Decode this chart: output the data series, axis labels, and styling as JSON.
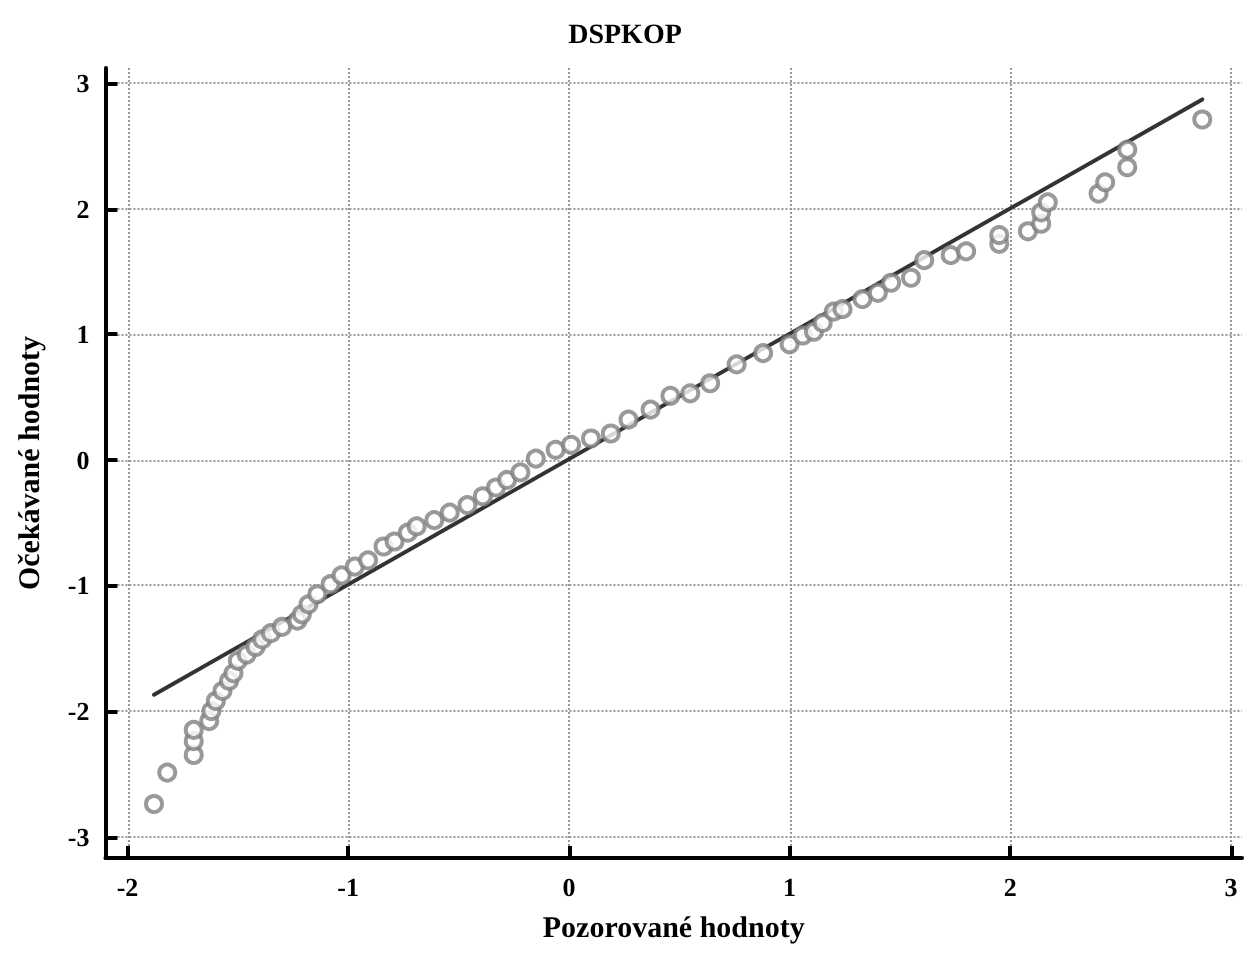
{
  "chart_data": {
    "type": "scatter",
    "title": "DSPKOP",
    "xlabel": "Pozorované hodnoty",
    "ylabel": "Očekávané hodnoty",
    "xlim": [
      -2.1,
      3.05
    ],
    "ylim": [
      -3.17,
      3.12
    ],
    "xticks": [
      -2,
      -1,
      0,
      1,
      2,
      3
    ],
    "yticks": [
      -3,
      -2,
      -1,
      0,
      1,
      2,
      3
    ],
    "grid": true,
    "marker": "circle",
    "series": [
      {
        "color": "#808080",
        "x": [
          -1.88,
          -1.82,
          -1.7,
          -1.7,
          -1.7,
          -1.63,
          -1.62,
          -1.6,
          -1.57,
          -1.54,
          -1.52,
          -1.5,
          -1.46,
          -1.42,
          -1.39,
          -1.35,
          -1.3,
          -1.23,
          -1.21,
          -1.18,
          -1.14,
          -1.08,
          -1.03,
          -0.97,
          -0.91,
          -0.84,
          -0.79,
          -0.73,
          -0.69,
          -0.61,
          -0.54,
          -0.46,
          -0.39,
          -0.33,
          -0.28,
          -0.22,
          -0.15,
          -0.06,
          0.01,
          0.1,
          0.19,
          0.27,
          0.37,
          0.46,
          0.55,
          0.64,
          0.76,
          0.88,
          1.0,
          1.06,
          1.11,
          1.15,
          1.2,
          1.24,
          1.33,
          1.4,
          1.46,
          1.55,
          1.61,
          1.73,
          1.8,
          1.95,
          1.95,
          2.08,
          2.14,
          2.14,
          2.17,
          2.4,
          2.43,
          2.53,
          2.53,
          2.87
        ],
        "values": [
          -2.74,
          -2.49,
          -2.35,
          -2.24,
          -2.15,
          -2.08,
          -2.0,
          -1.92,
          -1.84,
          -1.76,
          -1.7,
          -1.6,
          -1.55,
          -1.49,
          -1.43,
          -1.38,
          -1.33,
          -1.28,
          -1.23,
          -1.15,
          -1.07,
          -0.99,
          -0.92,
          -0.85,
          -0.8,
          -0.69,
          -0.65,
          -0.58,
          -0.53,
          -0.48,
          -0.42,
          -0.36,
          -0.29,
          -0.22,
          -0.16,
          -0.1,
          0.01,
          0.08,
          0.12,
          0.17,
          0.21,
          0.32,
          0.4,
          0.51,
          0.53,
          0.61,
          0.76,
          0.85,
          0.92,
          0.99,
          1.02,
          1.09,
          1.18,
          1.2,
          1.28,
          1.33,
          1.41,
          1.45,
          1.59,
          1.63,
          1.66,
          1.72,
          1.79,
          1.82,
          1.88,
          1.97,
          2.05,
          2.12,
          2.21,
          2.33,
          2.47,
          2.71
        ]
      },
      {
        "type": "line",
        "color": "#333333",
        "marker": "none",
        "x": [
          -1.88,
          2.87
        ],
        "values": [
          -1.87,
          2.87
        ]
      }
    ]
  }
}
